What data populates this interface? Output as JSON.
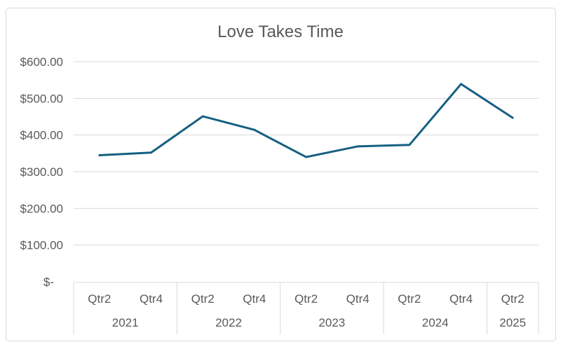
{
  "chart": {
    "colors": {
      "line": "#156082",
      "grid": "#D9D9D9",
      "border": "#D9D9D9",
      "text": "#595959",
      "background": "#FFFFFF"
    }
  },
  "chart_data": {
    "type": "line",
    "title": "Love Takes Time",
    "legend": false,
    "grid": true,
    "ylim": [
      0,
      600
    ],
    "y_tick_interval": 100,
    "y_ticks": [
      {
        "value": 0,
        "label": "$-"
      },
      {
        "value": 100,
        "label": "$100.00"
      },
      {
        "value": 200,
        "label": "$200.00"
      },
      {
        "value": 300,
        "label": "$300.00"
      },
      {
        "value": 400,
        "label": "$400.00"
      },
      {
        "value": 500,
        "label": "$500.00"
      },
      {
        "value": 600,
        "label": "$600.00"
      }
    ],
    "categories": [
      "2021 Qtr2",
      "2021 Qtr4",
      "2022 Qtr2",
      "2022 Qtr4",
      "2023 Qtr2",
      "2023 Qtr4",
      "2024 Qtr2",
      "2024 Qtr4",
      "2025 Qtr2"
    ],
    "x_axis": {
      "quarters": [
        "Qtr2",
        "Qtr4",
        "Qtr2",
        "Qtr4",
        "Qtr2",
        "Qtr4",
        "Qtr2",
        "Qtr4",
        "Qtr2"
      ],
      "year_groups": [
        {
          "label": "2021",
          "span": 2
        },
        {
          "label": "2022",
          "span": 2
        },
        {
          "label": "2023",
          "span": 2
        },
        {
          "label": "2024",
          "span": 2
        },
        {
          "label": "2025",
          "span": 1
        }
      ]
    },
    "values": [
      345,
      352,
      451,
      414,
      340,
      369,
      373,
      539,
      447
    ]
  }
}
